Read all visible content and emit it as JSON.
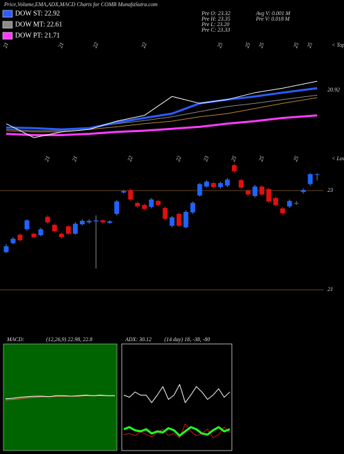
{
  "header": {
    "title": "Price,Volume,EMA,ADX,MACD Charts for COMB MunafaSutra.com",
    "legend": [
      {
        "label": "DOW ST: 22.92",
        "color": "#2a5cff"
      },
      {
        "label": "DOW MT: 22.61",
        "color": "#8a8a8a"
      },
      {
        "label": "DOW PT: 21.71",
        "color": "#ff3cff"
      }
    ],
    "info": [
      [
        "Pre  O: 23.32",
        "Avg V: 0.001 M"
      ],
      [
        "Pre  H: 23.35",
        "Pre  V: 0.018 M"
      ],
      [
        "Pre  L: 23.20"
      ],
      [
        "Pre  C: 23.33"
      ]
    ]
  },
  "chart_data": [
    {
      "type": "line",
      "annotation": "< Tops",
      "x": [
        0,
        4,
        8,
        12,
        16,
        20,
        24,
        28,
        32,
        36,
        40,
        45
      ],
      "xlim": [
        0,
        45
      ],
      "xticks": [
        {
          "value": 0,
          "label": "21"
        },
        {
          "value": 8,
          "label": "21"
        },
        {
          "value": 13,
          "label": "22"
        },
        {
          "value": 20,
          "label": "22"
        },
        {
          "value": 31,
          "label": "25"
        },
        {
          "value": 35,
          "label": "25"
        },
        {
          "value": 37,
          "label": "25"
        },
        {
          "value": 42,
          "label": "25"
        },
        {
          "value": 44,
          "label": "25"
        }
      ],
      "ylim": [
        19.9,
        21.69
      ],
      "yticks": [
        20.92
      ],
      "grid": false,
      "series": [
        {
          "color": "#ff3cff",
          "width": 3,
          "values": [
            20.23,
            20.21,
            20.21,
            20.23,
            20.26,
            20.28,
            20.31,
            20.34,
            20.39,
            20.43,
            20.48,
            20.52
          ]
        },
        {
          "color": "#8a8a8a",
          "width": 1,
          "values": [
            20.3,
            20.28,
            20.28,
            20.32,
            20.39,
            20.44,
            20.5,
            20.58,
            20.66,
            20.71,
            20.77,
            20.84
          ]
        },
        {
          "color": "#b8862b",
          "width": 1,
          "values": [
            20.28,
            20.26,
            20.26,
            20.3,
            20.34,
            20.39,
            20.43,
            20.5,
            20.55,
            20.63,
            20.71,
            20.8
          ]
        },
        {
          "color": "#2a5cff",
          "width": 3,
          "values": [
            20.33,
            20.32,
            20.3,
            20.32,
            20.41,
            20.48,
            20.55,
            20.71,
            20.77,
            20.82,
            20.88,
            20.95
          ]
        },
        {
          "color": "#ffffff",
          "width": 1,
          "values": [
            20.39,
            20.17,
            20.26,
            20.3,
            20.43,
            20.52,
            20.82,
            20.71,
            20.77,
            20.88,
            20.95,
            21.06
          ]
        }
      ]
    },
    {
      "type": "candlestick",
      "annotation": "< Lows",
      "up_color": "#1e64ff",
      "down_color": "#e01010",
      "xlim": [
        0,
        45
      ],
      "xticks": [
        {
          "value": 6,
          "label": "21"
        },
        {
          "value": 10,
          "label": "21"
        },
        {
          "value": 18,
          "label": "22"
        },
        {
          "value": 25,
          "label": "22"
        },
        {
          "value": 29,
          "label": "23"
        },
        {
          "value": 33,
          "label": "25"
        },
        {
          "value": 37,
          "label": "25"
        },
        {
          "value": 42,
          "label": "25"
        }
      ],
      "ylim": [
        20.05,
        23.72
      ],
      "yticks": [
        21,
        23
      ],
      "grid": true,
      "grid_color": "#8b5a2b",
      "open": [
        21.76,
        21.94,
        22.11,
        22.22,
        22.13,
        22.1,
        22.47,
        22.31,
        22.13,
        22.28,
        22.13,
        22.32,
        22.36,
        22.38,
        22.4,
        22.35,
        22.53,
        22.96,
        23.01,
        22.75,
        22.71,
        22.67,
        22.79,
        22.65,
        22.29,
        22.53,
        22.26,
        22.56,
        22.9,
        23.08,
        23.15,
        23.07,
        23.1,
        23.51,
        23.21,
        23.0,
        22.89,
        23.08,
        23.03,
        22.85,
        22.64,
        22.68,
        22.74,
        22.97,
        23.13,
        23.32
      ],
      "high": [
        21.92,
        22.06,
        22.14,
        22.42,
        22.15,
        22.25,
        22.5,
        22.33,
        22.15,
        22.3,
        22.36,
        22.42,
        22.42,
        22.5,
        22.42,
        22.4,
        22.81,
        23.01,
        23.04,
        22.78,
        22.74,
        22.85,
        22.82,
        22.68,
        22.49,
        22.56,
        22.6,
        22.78,
        23.15,
        23.21,
        23.18,
        23.18,
        23.25,
        23.54,
        23.24,
        23.03,
        23.11,
        23.11,
        23.06,
        22.88,
        22.67,
        22.82,
        22.79,
        23.04,
        23.35,
        23.35
      ],
      "low": [
        21.74,
        21.92,
        21.97,
        22.19,
        22.04,
        22.08,
        22.33,
        22.15,
        22.03,
        22.11,
        22.11,
        22.3,
        22.33,
        21.43,
        22.33,
        22.33,
        22.5,
        22.94,
        22.79,
        22.65,
        22.6,
        22.64,
        22.68,
        22.4,
        22.26,
        22.26,
        22.24,
        22.53,
        22.88,
        23.06,
        23.04,
        23.04,
        23.07,
        23.36,
        23.03,
        22.89,
        22.86,
        22.89,
        22.75,
        22.68,
        22.51,
        22.65,
        22.71,
        22.94,
        23.1,
        23.2
      ],
      "close": [
        21.88,
        22.03,
        22.0,
        22.4,
        22.06,
        22.22,
        22.36,
        22.18,
        22.06,
        22.13,
        22.33,
        22.39,
        22.39,
        22.4,
        22.36,
        22.38,
        22.78,
        22.99,
        22.82,
        22.68,
        22.63,
        22.82,
        22.71,
        22.43,
        22.46,
        22.29,
        22.57,
        22.75,
        23.13,
        23.18,
        23.07,
        23.15,
        23.22,
        23.39,
        23.06,
        22.92,
        23.08,
        22.92,
        22.78,
        22.71,
        22.54,
        22.79,
        22.75,
        23.01,
        23.33,
        23.33
      ]
    },
    {
      "type": "line",
      "title": "MACD:",
      "subtitle": "(12,26,9) 22.98, 22.8",
      "ylim": [
        -1,
        1
      ],
      "series": [
        {
          "color": "#ff5a5a",
          "width": 1,
          "values": [
            -0.05,
            -0.04,
            -0.03,
            -0.01,
            0,
            0.01,
            0.01,
            0.02,
            0.02,
            0.02,
            0.02,
            0.03,
            0.03,
            0.03,
            0.03,
            0.03
          ]
        },
        {
          "color": "#ffffff",
          "width": 1,
          "values": [
            -0.03,
            -0.02,
            0,
            0.01,
            0.02,
            0.02,
            0.01,
            0.03,
            0.03,
            0.02,
            0.03,
            0.04,
            0.03,
            0.04,
            0.03,
            0.03
          ]
        }
      ]
    },
    {
      "type": "line",
      "title": "ADX: 30.12",
      "subtitle": "(14 day) 18, -38, -80",
      "ylim": [
        0,
        100
      ],
      "series": [
        {
          "color": "#ffffff",
          "width": 1,
          "values": [
            52,
            50,
            55,
            52,
            52,
            45,
            52,
            60,
            48,
            52,
            62,
            45,
            52,
            60,
            55,
            48,
            52,
            58,
            50,
            55
          ]
        },
        {
          "color": "#e01010",
          "width": 1,
          "values": [
            15,
            16,
            14,
            18,
            15,
            13,
            17,
            20,
            14,
            16,
            12,
            25,
            18,
            14,
            16,
            20,
            12,
            15,
            22,
            17
          ]
        },
        {
          "color": "#22ff22",
          "width": 3,
          "values": [
            20,
            22,
            19,
            18,
            20,
            16,
            18,
            17,
            21,
            19,
            14,
            18,
            22,
            20,
            16,
            15,
            19,
            22,
            18,
            20
          ]
        }
      ]
    }
  ]
}
